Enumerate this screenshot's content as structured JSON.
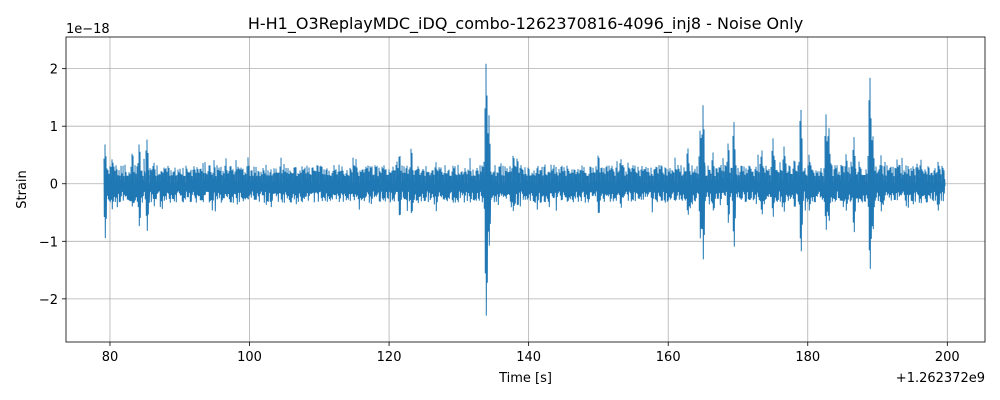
{
  "chart_data": {
    "type": "line",
    "title": "H-H1_O3ReplayMDC_iDQ_combo-1262370816-4096_inj8 - Noise Only",
    "xlabel": "Time [s]",
    "ylabel": "Strain",
    "x_offset_label": "+1.262372e9",
    "y_scale_label": "1e−18",
    "xlim": [
      73.7,
      205.4
    ],
    "ylim": [
      -2.75,
      2.55
    ],
    "x_ticks": [
      80,
      100,
      120,
      140,
      160,
      180,
      200
    ],
    "x_tick_labels": [
      "80",
      "100",
      "120",
      "140",
      "160",
      "180",
      "200"
    ],
    "y_ticks": [
      -2,
      -1,
      0,
      1,
      2
    ],
    "y_tick_labels": [
      "−2",
      "−1",
      "0",
      "1",
      "2"
    ],
    "grid": true,
    "line_color": "#1f77b4",
    "series": [
      {
        "x_range": [
          79.2,
          199.5
        ],
        "baseline_amplitude": 0.22,
        "bursts": [
          {
            "t": 79.3,
            "max": 0.72,
            "min": -0.95
          },
          {
            "t": 80.3,
            "max": 0.45,
            "min": -0.45
          },
          {
            "t": 83.2,
            "max": 0.6,
            "min": -0.45
          },
          {
            "t": 84.2,
            "max": 0.75,
            "min": -0.8
          },
          {
            "t": 85.3,
            "max": 0.85,
            "min": -0.87
          },
          {
            "t": 86.3,
            "max": 0.4,
            "min": -0.4
          },
          {
            "t": 121.5,
            "max": 0.55,
            "min": -0.62
          },
          {
            "t": 123.2,
            "max": 0.65,
            "min": -0.55
          },
          {
            "t": 133.9,
            "max": 2.31,
            "min": -2.5
          },
          {
            "t": 134.3,
            "max": 1.25,
            "min": -1.2
          },
          {
            "t": 137.8,
            "max": 0.55,
            "min": -0.5
          },
          {
            "t": 138.4,
            "max": 0.48,
            "min": -0.42
          },
          {
            "t": 150.0,
            "max": 0.55,
            "min": -0.6
          },
          {
            "t": 153.2,
            "max": 0.45,
            "min": -0.45
          },
          {
            "t": 162.8,
            "max": 0.7,
            "min": -0.6
          },
          {
            "t": 164.6,
            "max": 1.0,
            "min": -1.0
          },
          {
            "t": 165.0,
            "max": 1.45,
            "min": -1.37
          },
          {
            "t": 166.4,
            "max": 0.55,
            "min": -0.5
          },
          {
            "t": 168.6,
            "max": 0.75,
            "min": -0.7
          },
          {
            "t": 169.4,
            "max": 1.1,
            "min": -1.15
          },
          {
            "t": 173.4,
            "max": 0.6,
            "min": -0.6
          },
          {
            "t": 175.0,
            "max": 0.85,
            "min": -0.6
          },
          {
            "t": 176.6,
            "max": 0.7,
            "min": -0.5
          },
          {
            "t": 178.1,
            "max": 0.45,
            "min": -0.45
          },
          {
            "t": 179.0,
            "max": 1.45,
            "min": -1.32
          },
          {
            "t": 180.2,
            "max": 0.55,
            "min": -0.5
          },
          {
            "t": 182.6,
            "max": 1.25,
            "min": -0.85
          },
          {
            "t": 183.0,
            "max": 1.05,
            "min": -0.7
          },
          {
            "t": 185.5,
            "max": 0.55,
            "min": -0.5
          },
          {
            "t": 186.6,
            "max": 0.85,
            "min": -0.9
          },
          {
            "t": 188.9,
            "max": 1.98,
            "min": -1.62
          },
          {
            "t": 189.3,
            "max": 0.95,
            "min": -0.9
          },
          {
            "t": 190.5,
            "max": 0.5,
            "min": -0.5
          },
          {
            "t": 196.2,
            "max": 0.45,
            "min": -0.35
          },
          {
            "t": 198.7,
            "max": 0.42,
            "min": -0.5
          }
        ]
      }
    ]
  }
}
